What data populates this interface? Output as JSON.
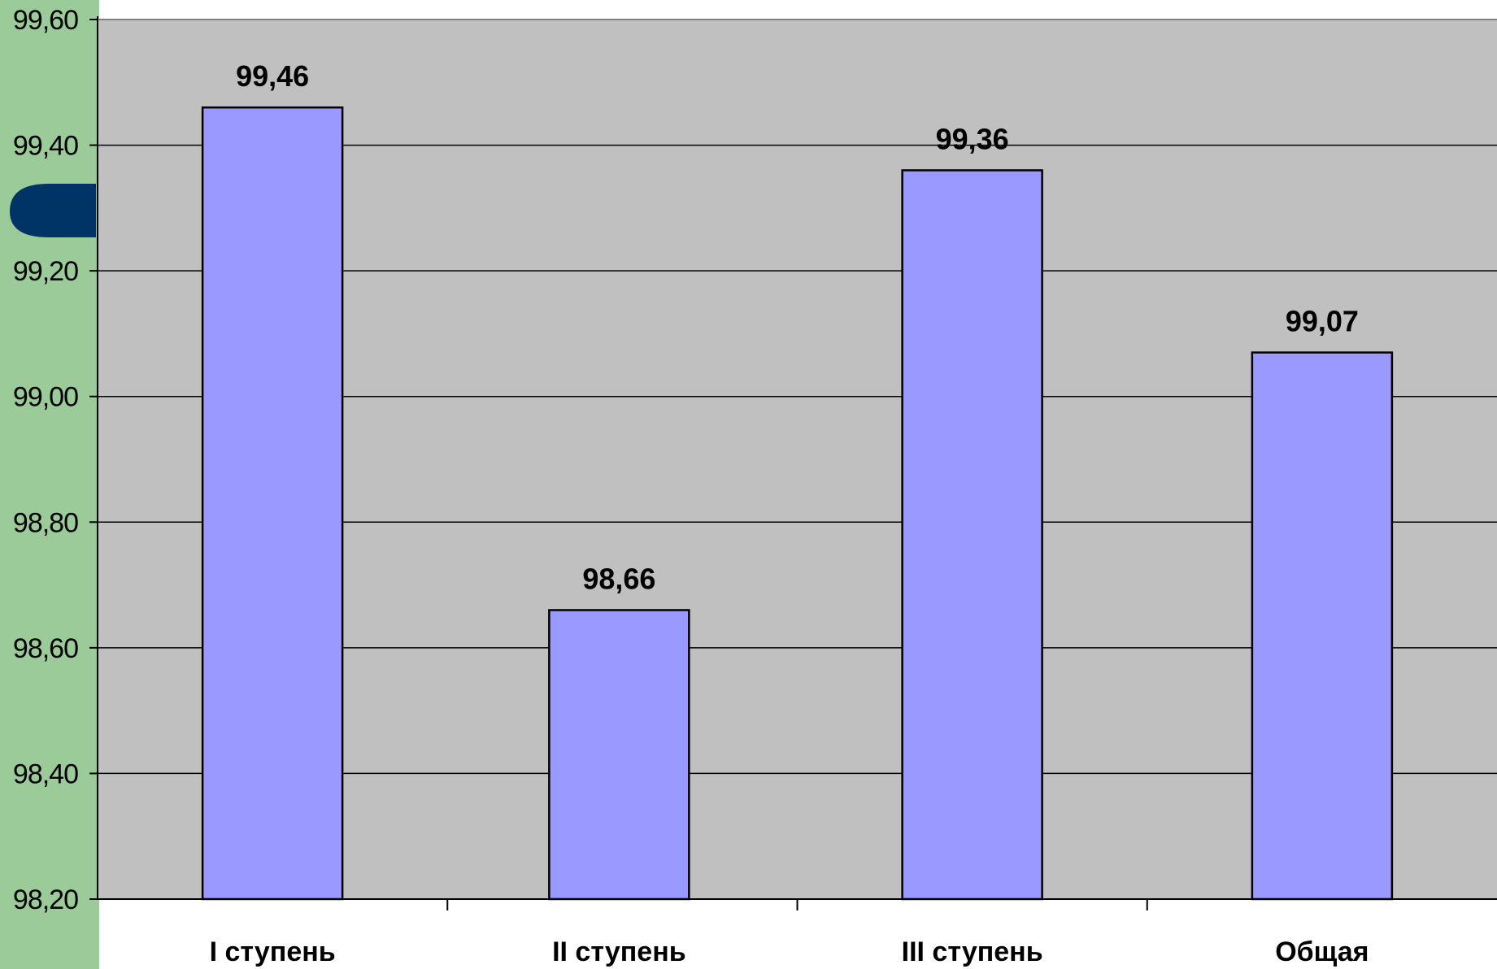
{
  "chart_data": {
    "type": "bar",
    "categories": [
      "I ступень",
      "II ступень",
      "III ступень",
      "Общая"
    ],
    "values": [
      99.46,
      98.66,
      99.36,
      99.07
    ],
    "data_labels": [
      "99,46",
      "98,66",
      "99,36",
      "99,07"
    ],
    "title": "",
    "xlabel": "",
    "ylabel": "",
    "ylim": [
      98.2,
      99.6
    ],
    "y_ticks": [
      98.2,
      98.4,
      98.6,
      98.8,
      99.0,
      99.2,
      99.4,
      99.6
    ],
    "y_tick_labels": [
      "98,20",
      "98,40",
      "98,60",
      "98,80",
      "99,00",
      "99,20",
      "99,40",
      "99,60"
    ],
    "grid": true,
    "legend": "none"
  },
  "colors": {
    "bar_fill": "#9999FF",
    "bar_stroke": "#000000",
    "plot_background": "#C0C0C0",
    "gridline": "#000000",
    "side_panel": "#9BCB99",
    "side_tab": "#003366"
  },
  "decorations": {
    "side_tab_icon": "rounded-tab-shape"
  }
}
